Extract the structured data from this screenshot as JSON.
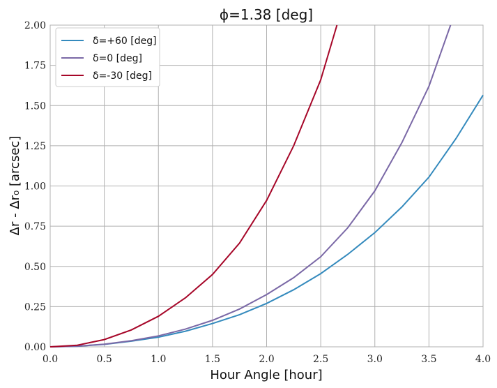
{
  "chart_data": {
    "type": "line",
    "title": "ϕ=1.38 [deg]",
    "xlabel": "Hour Angle [hour]",
    "ylabel": "Δr - Δr₀ [arcsec]",
    "xlim": [
      0.0,
      4.0
    ],
    "ylim": [
      0.0,
      2.0
    ],
    "xticks": [
      "0.0",
      "0.5",
      "1.0",
      "1.5",
      "2.0",
      "2.5",
      "3.0",
      "3.5",
      "4.0"
    ],
    "yticks": [
      "0.00",
      "0.25",
      "0.50",
      "0.75",
      "1.00",
      "1.25",
      "1.50",
      "1.75",
      "2.00"
    ],
    "grid": true,
    "legend_position": "top-left",
    "series": [
      {
        "name": "δ=+60 [deg]",
        "color": "#348abd",
        "x": [
          0.0,
          0.25,
          0.5,
          0.75,
          1.0,
          1.25,
          1.5,
          1.75,
          2.0,
          2.25,
          2.5,
          2.75,
          3.0,
          3.25,
          3.5,
          3.75,
          4.0
        ],
        "y": [
          0.0,
          0.004,
          0.015,
          0.035,
          0.06,
          0.097,
          0.145,
          0.2,
          0.27,
          0.355,
          0.455,
          0.575,
          0.71,
          0.87,
          1.055,
          1.295,
          1.565
        ]
      },
      {
        "name": "δ=0 [deg]",
        "color": "#7a68a6",
        "x": [
          0.0,
          0.25,
          0.5,
          0.75,
          1.0,
          1.25,
          1.5,
          1.75,
          2.0,
          2.25,
          2.5,
          2.75,
          3.0,
          3.25,
          3.5,
          3.7
        ],
        "y": [
          0.0,
          0.004,
          0.016,
          0.038,
          0.068,
          0.11,
          0.165,
          0.235,
          0.325,
          0.43,
          0.56,
          0.74,
          0.97,
          1.27,
          1.62,
          2.0
        ]
      },
      {
        "name": "δ=-30 [deg]",
        "color": "#a60628",
        "x": [
          0.0,
          0.25,
          0.5,
          0.75,
          1.0,
          1.25,
          1.5,
          1.75,
          2.0,
          2.25,
          2.5,
          2.65
        ],
        "y": [
          0.0,
          0.01,
          0.045,
          0.105,
          0.19,
          0.305,
          0.45,
          0.645,
          0.91,
          1.25,
          1.66,
          2.0
        ]
      }
    ]
  }
}
